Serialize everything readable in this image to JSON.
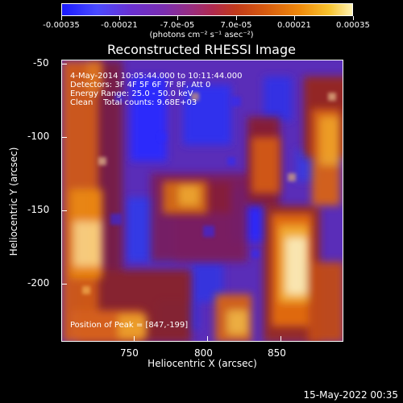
{
  "colorbar": {
    "ticks": [
      "-0.00035",
      "-0.00021",
      "-7.0e-05",
      "7.0e-05",
      "0.00021",
      "0.00035"
    ],
    "units": "(photons cm⁻² s⁻¹ asec⁻²)"
  },
  "title": "Reconstructed RHESSI Image",
  "info": {
    "line1": "4-May-2014 10:05:44.000 to 10:11:44.000",
    "line2": "Detectors: 3F 4F 5F 6F 7F 8F, Att 0",
    "line3": "Energy Range: 25.0 - 50.0 keV",
    "line4": "Clean    Total counts: 9.68E+03",
    "peak": "Position of Peak = [847,-199]"
  },
  "axes": {
    "x_label": "Heliocentric X (arcsec)",
    "y_label": "Heliocentric Y (arcsec)",
    "x_ticks": [
      "750",
      "800",
      "850"
    ],
    "y_ticks": [
      "-50",
      "-100",
      "-150",
      "-200"
    ]
  },
  "footer": "15-May-2022 00:35"
}
